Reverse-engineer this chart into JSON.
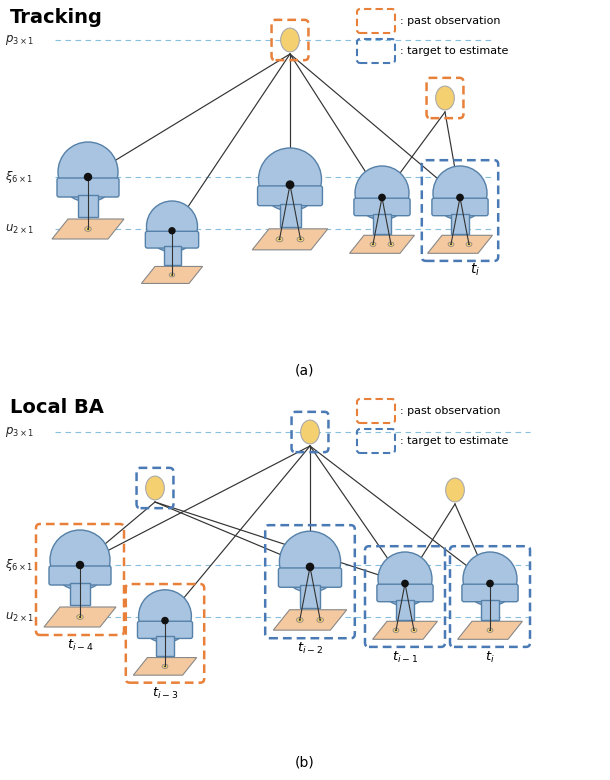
{
  "figure_width": 6.1,
  "figure_height": 7.8,
  "dpi": 100,
  "bg_color": "#ffffff",
  "title_a": "Tracking",
  "title_b": "Local BA",
  "caption_a": "(a)",
  "caption_b": "(b)",
  "orange_color": "#E8803A",
  "blue_color": "#4A7AB5",
  "body_fill": "#A8C4E0",
  "plate_fill": "#F5C9A0",
  "point_fill": "#F5D070",
  "dash_color": "#6AAED6",
  "edge_color": "#5580A8",
  "legend_text_past": ": past observation",
  "legend_text_target": ": target to estimate"
}
